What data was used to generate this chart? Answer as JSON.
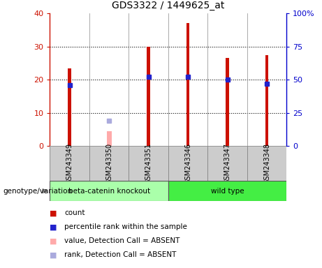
{
  "title": "GDS3322 / 1449625_at",
  "samples": [
    "GSM243349",
    "GSM243350",
    "GSM243351",
    "GSM243346",
    "GSM243347",
    "GSM243348"
  ],
  "counts": [
    23.5,
    null,
    30.0,
    37.0,
    26.5,
    27.5
  ],
  "ranks_pct": [
    46,
    null,
    52,
    52,
    50,
    47
  ],
  "absent_values": [
    null,
    4.5,
    null,
    null,
    null,
    null
  ],
  "absent_ranks_pct": [
    null,
    19,
    null,
    null,
    null,
    null
  ],
  "ylim_left": [
    0,
    40
  ],
  "ylim_right": [
    0,
    100
  ],
  "left_ticks": [
    0,
    10,
    20,
    30,
    40
  ],
  "right_ticks": [
    0,
    25,
    50,
    75,
    100
  ],
  "right_tick_labels": [
    "0",
    "25",
    "50",
    "75",
    "100%"
  ],
  "bar_color": "#cc1100",
  "rank_color": "#2222cc",
  "absent_bar_color": "#ffaaaa",
  "absent_rank_color": "#aaaadd",
  "bg_plot": "#ffffff",
  "bg_label": "#cccccc",
  "bg_group_ko": "#aaffaa",
  "bg_group_wt": "#44ee44",
  "left_axis_color": "#cc1100",
  "right_axis_color": "#0000cc",
  "bar_width": 0.08,
  "legend_items": [
    {
      "label": "count",
      "color": "#cc1100"
    },
    {
      "label": "percentile rank within the sample",
      "color": "#2222cc"
    },
    {
      "label": "value, Detection Call = ABSENT",
      "color": "#ffaaaa"
    },
    {
      "label": "rank, Detection Call = ABSENT",
      "color": "#aaaadd"
    }
  ]
}
